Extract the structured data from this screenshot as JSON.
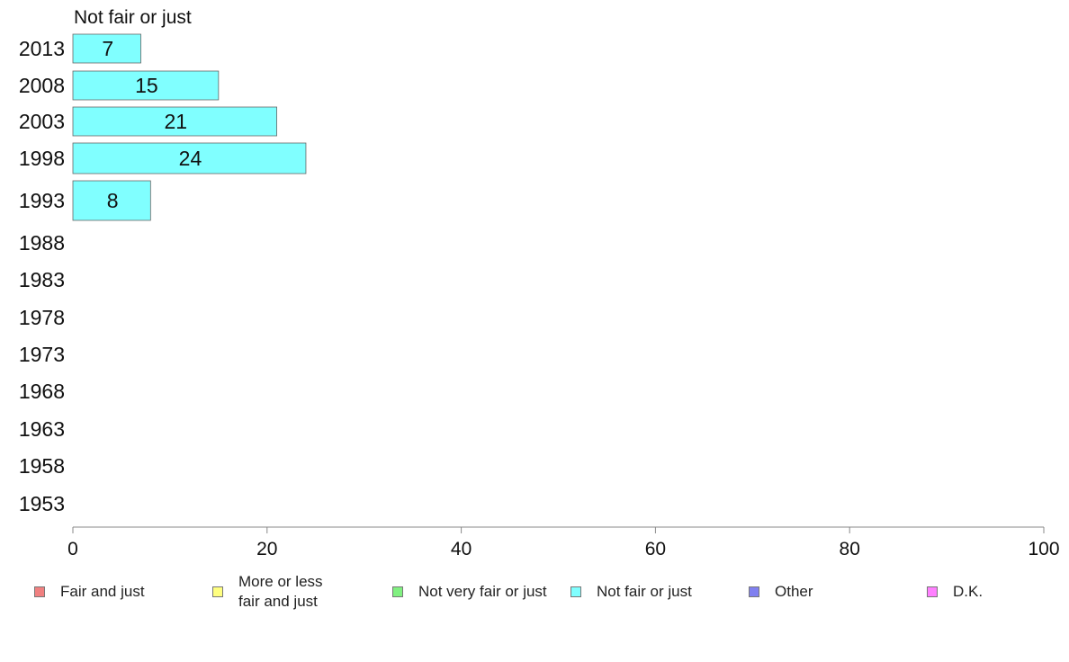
{
  "chart_data": {
    "type": "bar",
    "orientation": "horizontal",
    "title": "Not fair or just",
    "categories": [
      "2013",
      "2008",
      "2003",
      "1998",
      "1993",
      "1988",
      "1983",
      "1978",
      "1973",
      "1968",
      "1963",
      "1958",
      "1953"
    ],
    "series": [
      {
        "name": "Not fair or just",
        "color": "#80ffff",
        "values": [
          7,
          15,
          21,
          24,
          8,
          null,
          null,
          null,
          null,
          null,
          null,
          null,
          null
        ]
      }
    ],
    "xlim": [
      0,
      100
    ],
    "xticks": [
      0,
      20,
      40,
      60,
      80,
      100
    ],
    "grid": false,
    "legend_position": "bottom",
    "legend": [
      {
        "label": "Fair and just",
        "color": "#f08080"
      },
      {
        "label": "More or less fair and just",
        "color": "#ffff80"
      },
      {
        "label": "Not very fair or just",
        "color": "#80f080"
      },
      {
        "label": "Not fair or just",
        "color": "#80ffff"
      },
      {
        "label": "Other",
        "color": "#8080f0"
      },
      {
        "label": "D.K.",
        "color": "#ff80ff"
      }
    ]
  }
}
